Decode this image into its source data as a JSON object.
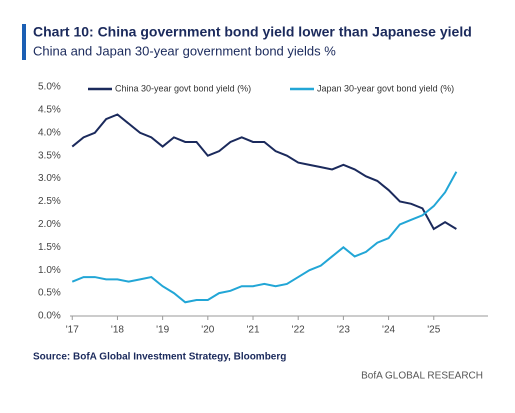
{
  "chart_data": {
    "type": "line",
    "title": "Chart 10: China government bond yield lower than Japanese yield",
    "subtitle": "China and Japan 30-year government bond yields %",
    "source": "Source: BofA Global Investment Strategy, Bloomberg",
    "brand": "BofA GLOBAL RESEARCH",
    "x": [
      2017,
      2017.25,
      2017.5,
      2017.75,
      2018,
      2018.25,
      2018.5,
      2018.75,
      2019,
      2019.25,
      2019.5,
      2019.75,
      2020,
      2020.25,
      2020.5,
      2020.75,
      2021,
      2021.25,
      2021.5,
      2021.75,
      2022,
      2022.25,
      2022.5,
      2022.75,
      2023,
      2023.25,
      2023.5,
      2023.75,
      2024,
      2024.25,
      2024.5,
      2024.75,
      2025,
      2025.25,
      2025.5
    ],
    "series": [
      {
        "name": "China 30-year govt bond yield (%)",
        "color": "#1b2a5c",
        "values": [
          3.7,
          3.9,
          4.0,
          4.3,
          4.4,
          4.2,
          4.0,
          3.9,
          3.7,
          3.9,
          3.8,
          3.8,
          3.5,
          3.6,
          3.8,
          3.9,
          3.8,
          3.8,
          3.6,
          3.5,
          3.35,
          3.3,
          3.25,
          3.2,
          3.3,
          3.2,
          3.05,
          2.95,
          2.75,
          2.5,
          2.45,
          2.35,
          1.9,
          2.05,
          1.9
        ]
      },
      {
        "name": "Japan 30-year govt bond yield (%)",
        "color": "#22a6d6",
        "values": [
          0.75,
          0.85,
          0.85,
          0.8,
          0.8,
          0.75,
          0.8,
          0.85,
          0.65,
          0.5,
          0.3,
          0.35,
          0.35,
          0.5,
          0.55,
          0.65,
          0.65,
          0.7,
          0.65,
          0.7,
          0.85,
          1.0,
          1.1,
          1.3,
          1.5,
          1.3,
          1.4,
          1.6,
          1.7,
          2.0,
          2.1,
          2.2,
          2.4,
          2.7,
          3.15
        ]
      }
    ],
    "xlim": [
      2016.95,
      2026.2
    ],
    "xticks": [
      {
        "value": 2017,
        "label": "'17"
      },
      {
        "value": 2018,
        "label": "'18"
      },
      {
        "value": 2019,
        "label": "'19"
      },
      {
        "value": 2020,
        "label": "'20"
      },
      {
        "value": 2021,
        "label": "'21"
      },
      {
        "value": 2022,
        "label": "'22"
      },
      {
        "value": 2023,
        "label": "'23"
      },
      {
        "value": 2024,
        "label": "'24"
      },
      {
        "value": 2025,
        "label": "'25"
      }
    ],
    "ylim": [
      0,
      5
    ],
    "yticks": [
      {
        "value": 0,
        "label": "0.0%"
      },
      {
        "value": 0.5,
        "label": "0.5%"
      },
      {
        "value": 1,
        "label": "1.0%"
      },
      {
        "value": 1.5,
        "label": "1.5%"
      },
      {
        "value": 2,
        "label": "2.0%"
      },
      {
        "value": 2.5,
        "label": "2.5%"
      },
      {
        "value": 3,
        "label": "3.0%"
      },
      {
        "value": 3.5,
        "label": "3.5%"
      },
      {
        "value": 4,
        "label": "4.0%"
      },
      {
        "value": 4.5,
        "label": "4.5%"
      },
      {
        "value": 5,
        "label": "5.0%"
      }
    ]
  }
}
